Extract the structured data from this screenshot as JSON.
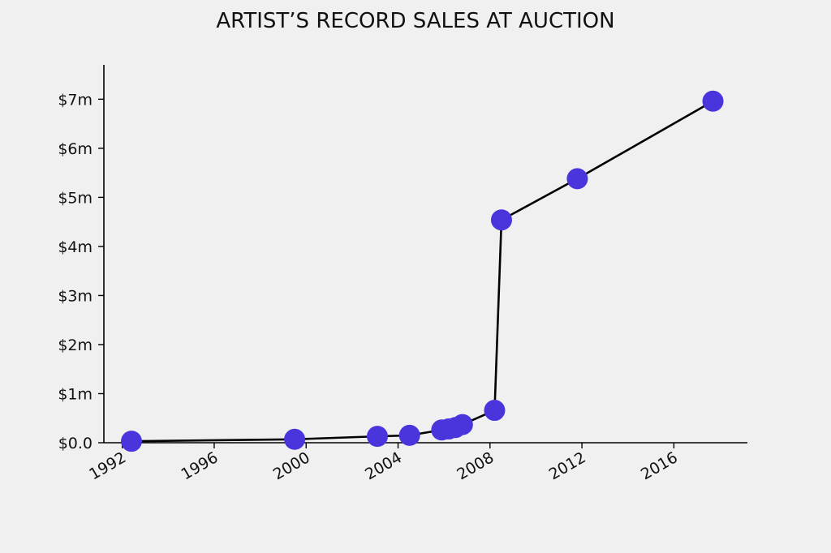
{
  "chart_data": {
    "type": "line",
    "title": "ARTIST’S RECORD SALES AT AUCTION",
    "xlabel": "",
    "ylabel": "",
    "x": [
      1992.4,
      1999.5,
      2003.1,
      2004.5,
      2005.9,
      2006.2,
      2006.5,
      2006.8,
      2008.2,
      2008.5,
      2011.8,
      2017.7
    ],
    "values": [
      0.03,
      0.07,
      0.13,
      0.15,
      0.26,
      0.28,
      0.31,
      0.37,
      0.66,
      4.54,
      5.38,
      6.96
    ],
    "xlim": [
      1991.2,
      2019.2
    ],
    "ylim": [
      0,
      7.7
    ],
    "x_ticks": [
      1992,
      1996,
      2000,
      2004,
      2008,
      2012,
      2016
    ],
    "x_tick_labels": [
      "1992",
      "1996",
      "2000",
      "2004",
      "2008",
      "2012",
      "2016"
    ],
    "y_ticks": [
      0,
      1,
      2,
      3,
      4,
      5,
      6,
      7
    ],
    "y_tick_labels": [
      "$0.0",
      "$1m",
      "$2m",
      "$3m",
      "$4m",
      "$5m",
      "$6m",
      "$7m"
    ],
    "grid": false,
    "legend": "none",
    "colors": {
      "marker": "#4a35dd",
      "line": "#000000",
      "axis": "#000000",
      "background": "#f0f0f0"
    }
  }
}
